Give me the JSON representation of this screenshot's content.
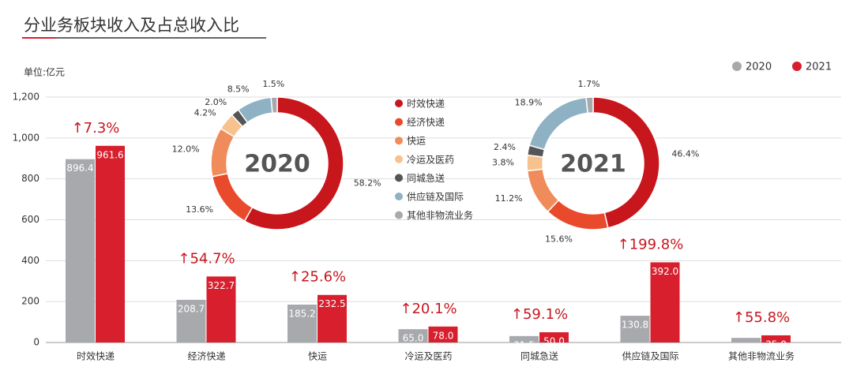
{
  "chart_data": [
    {
      "type": "bar",
      "title": "分业务板块收入及占总收入比",
      "unit": "单位:亿元",
      "categories": [
        "时效快递",
        "经济快递",
        "快运",
        "冷运及医药",
        "同城急送",
        "供应链及国际",
        "其他非物流业务"
      ],
      "series": [
        {
          "name": "2020",
          "color": "#a7a9ac",
          "values": [
            896.4,
            208.7,
            185.2,
            65.0,
            31.5,
            130.8,
            22.4
          ],
          "value_labels": [
            "896.4",
            "208.7",
            "185.2",
            "65.0",
            "31.5",
            "130.8",
            "22.4"
          ]
        },
        {
          "name": "2021",
          "color": "#d71f2d",
          "values": [
            961.6,
            322.7,
            232.5,
            78.0,
            50.0,
            392.0,
            35.0
          ],
          "value_labels": [
            "961.6",
            "322.7",
            "232.5",
            "78.0",
            "50.0",
            "392.0",
            "35.0"
          ]
        }
      ],
      "annotations": [
        "↑7.3%",
        "↑54.7%",
        "↑25.6%",
        "↑20.1%",
        "↑59.1%",
        "↑199.8%",
        "↑55.8%"
      ],
      "ylim": [
        0,
        1200
      ],
      "yticks": [
        0,
        200,
        400,
        600,
        800,
        {
          "value": 1000,
          "label": "1,000"
        },
        {
          "value": 1200,
          "label": "1,200"
        }
      ],
      "grid": true,
      "legend": "top-right"
    },
    {
      "type": "donut",
      "center_label": "2020",
      "values": [
        58.2,
        13.6,
        12.0,
        4.2,
        2.0,
        8.5,
        1.5
      ],
      "value_labels": [
        "58.2%",
        "13.6%",
        "12.0%",
        "4.2%",
        "2.0%",
        "8.5%",
        "1.5%"
      ]
    },
    {
      "type": "donut",
      "center_label": "2021",
      "values": [
        46.4,
        15.6,
        11.2,
        3.8,
        2.4,
        18.9,
        1.7
      ],
      "value_labels": [
        "46.4%",
        "15.6%",
        "11.2%",
        "3.8%",
        "2.4%",
        "18.9%",
        "1.7%"
      ]
    }
  ],
  "donut_legend": {
    "labels": [
      "时效快递",
      "经济快递",
      "快运",
      "冷运及医药",
      "同城急送",
      "供应链及国际",
      "其他非物流业务"
    ],
    "colors": [
      "#c8161d",
      "#e94a2c",
      "#f08c5c",
      "#f7c28e",
      "#555555",
      "#8fb1c4",
      "#a7a9ac"
    ]
  }
}
